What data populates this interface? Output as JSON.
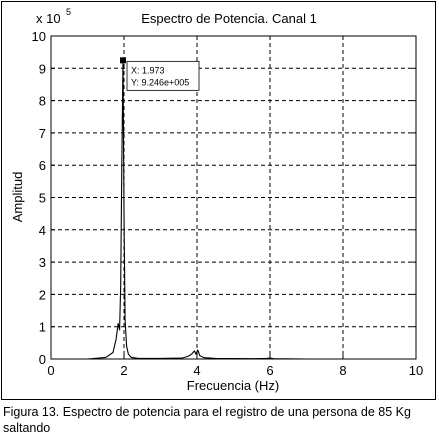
{
  "chart_data": {
    "type": "line",
    "title": "Espectro de Potencia. Canal 1",
    "xlabel": "Frecuencia (Hz)",
    "ylabel": "Amplitud",
    "y_multiplier_label": "x 10",
    "y_multiplier_exponent": "5",
    "y_scale": 100000,
    "xlim": [
      0,
      10
    ],
    "ylim": [
      0,
      10
    ],
    "x_ticks": [
      "0",
      "2",
      "4",
      "6",
      "8",
      "10"
    ],
    "y_ticks": [
      "0",
      "1",
      "2",
      "3",
      "4",
      "5",
      "6",
      "7",
      "8",
      "9",
      "10"
    ],
    "grid": true,
    "series": [
      {
        "x": [
          0.0,
          1.0,
          1.5,
          1.7,
          1.78,
          1.84,
          1.88,
          1.91,
          1.94,
          1.973,
          2.0,
          2.03,
          2.07,
          2.12,
          2.2,
          2.4,
          3.0,
          3.6,
          3.75,
          3.85,
          3.93,
          3.97,
          4.02,
          4.08,
          4.2,
          4.5,
          5.5,
          5.9,
          6.0,
          6.1,
          7.0,
          10.0
        ],
        "y": [
          0.0,
          0.0,
          0.05,
          0.2,
          0.6,
          1.1,
          0.9,
          2.3,
          6.0,
          9.246,
          4.5,
          1.2,
          0.4,
          0.15,
          0.05,
          0.02,
          0.02,
          0.03,
          0.08,
          0.15,
          0.25,
          0.15,
          0.28,
          0.1,
          0.04,
          0.02,
          0.01,
          0.02,
          0.03,
          0.01,
          0.0,
          0.0
        ]
      }
    ],
    "annotation": {
      "x": 1.973,
      "y": 9.246,
      "line1": "X: 1.973",
      "line2": "Y: 9.246e+005"
    }
  },
  "caption": "Figura 13. Espectro de potencia para el registro de una persona de 85 Kg saltando"
}
